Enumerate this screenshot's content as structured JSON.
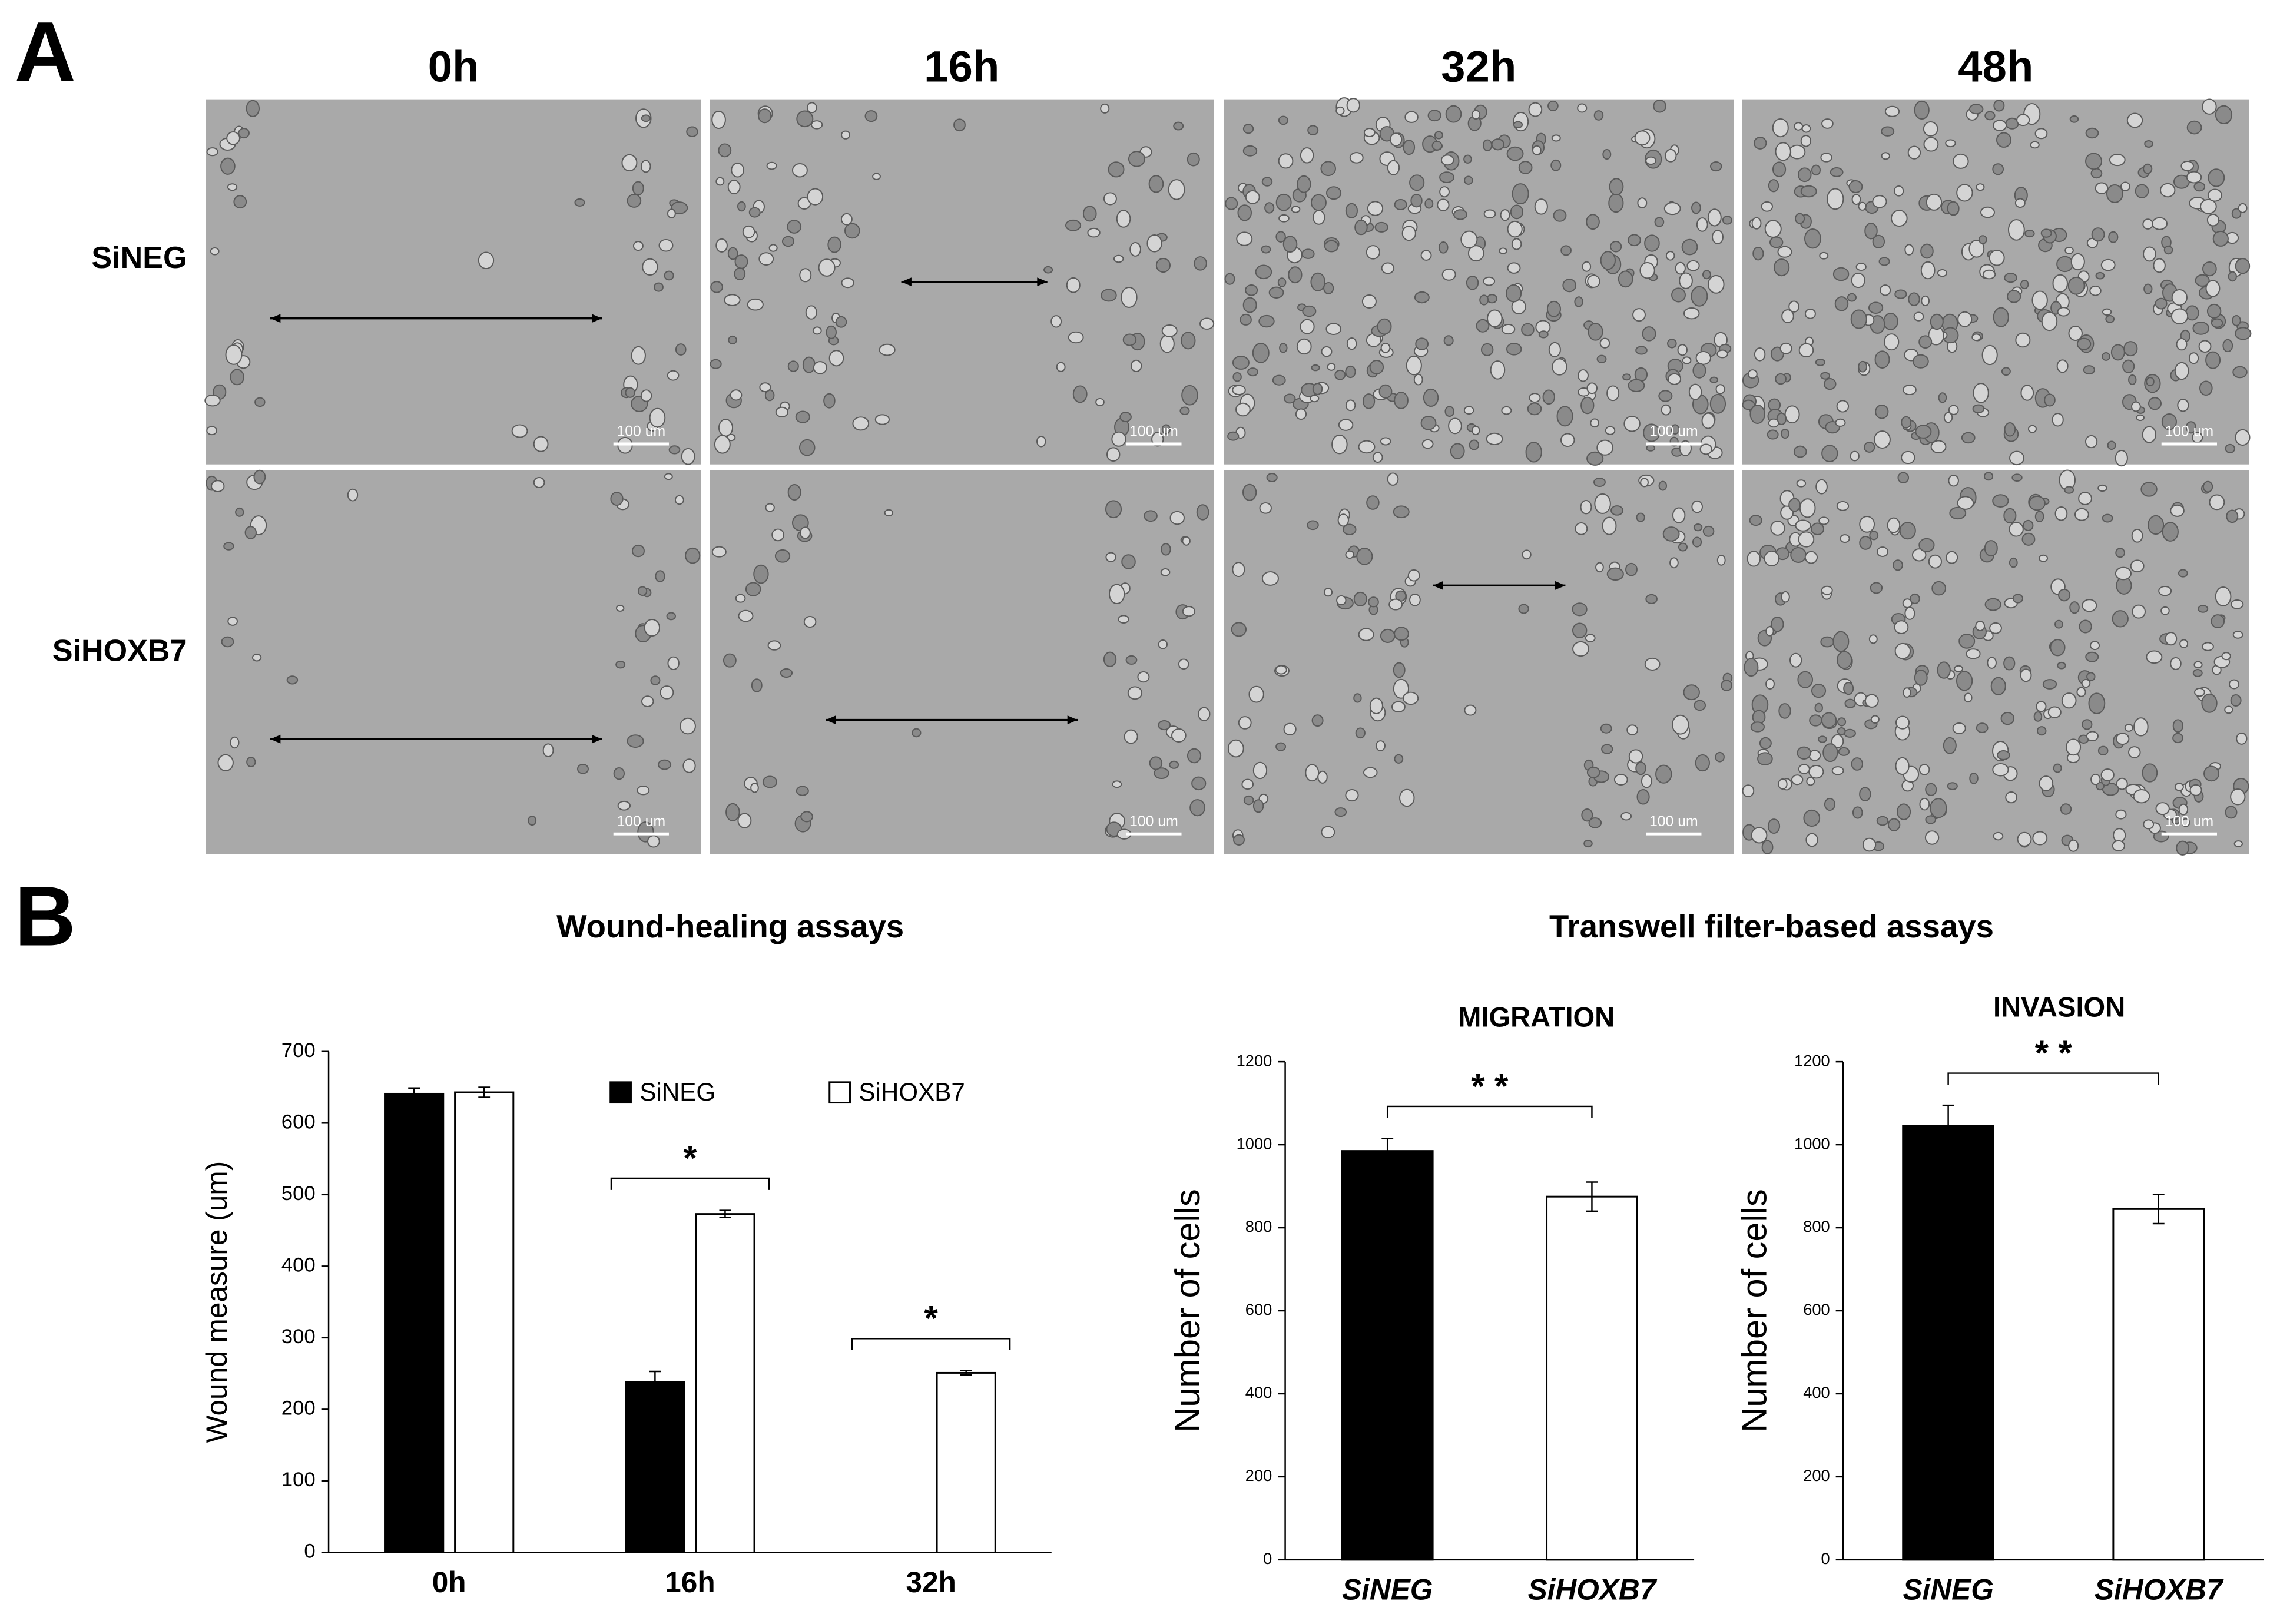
{
  "figure": {
    "panel_a_label": "A",
    "panel_b_label": "B",
    "time_points": [
      "0h",
      "16h",
      "32h",
      "48h"
    ],
    "conditions": [
      "SiNEG",
      "SiHOXB7"
    ],
    "scale_bar_label": "100 um",
    "transwell_title": "Transwell filter-based assays"
  },
  "chart_data": [
    {
      "type": "bar",
      "title": "Wound-healing assays",
      "y_label": "Wound measure (um)",
      "categories": [
        "0h",
        "16h",
        "32h"
      ],
      "series": [
        {
          "name": "SiNEG",
          "color": "#000000",
          "values": [
            641,
            238,
            0
          ],
          "errors": [
            8,
            15,
            null
          ]
        },
        {
          "name": "SiHOXB7",
          "color": "#ffffff",
          "values": [
            643,
            473,
            251
          ],
          "errors": [
            7,
            5,
            3
          ]
        }
      ],
      "annotations": [
        {
          "text": "*",
          "category": "16h"
        },
        {
          "text": "*",
          "category": "32h"
        }
      ],
      "ylim": [
        0,
        700
      ],
      "yticks": [
        0,
        100,
        200,
        300,
        400,
        500,
        600,
        700
      ],
      "grid": false,
      "legend": "top"
    },
    {
      "type": "bar",
      "title": "MIGRATION",
      "y_label": "Number of cells",
      "categories": [
        "SiNEG",
        "SiHOXB7"
      ],
      "values": [
        985,
        875
      ],
      "errors": [
        30,
        35
      ],
      "colors": [
        "#000000",
        "#ffffff"
      ],
      "annotations": [
        {
          "text": "* *"
        }
      ],
      "ylim": [
        0,
        1200
      ],
      "yticks": [
        0,
        200,
        400,
        600,
        800,
        1000,
        1200
      ],
      "grid": false
    },
    {
      "type": "bar",
      "title": "INVASION",
      "y_label": "Number of cells",
      "categories": [
        "SiNEG",
        "SiHOXB7"
      ],
      "values": [
        1045,
        845
      ],
      "errors": [
        50,
        35
      ],
      "colors": [
        "#000000",
        "#ffffff"
      ],
      "annotations": [
        {
          "text": "* *"
        }
      ],
      "ylim": [
        0,
        1200
      ],
      "yticks": [
        0,
        200,
        400,
        600,
        800,
        1000,
        1200
      ],
      "grid": false
    }
  ]
}
